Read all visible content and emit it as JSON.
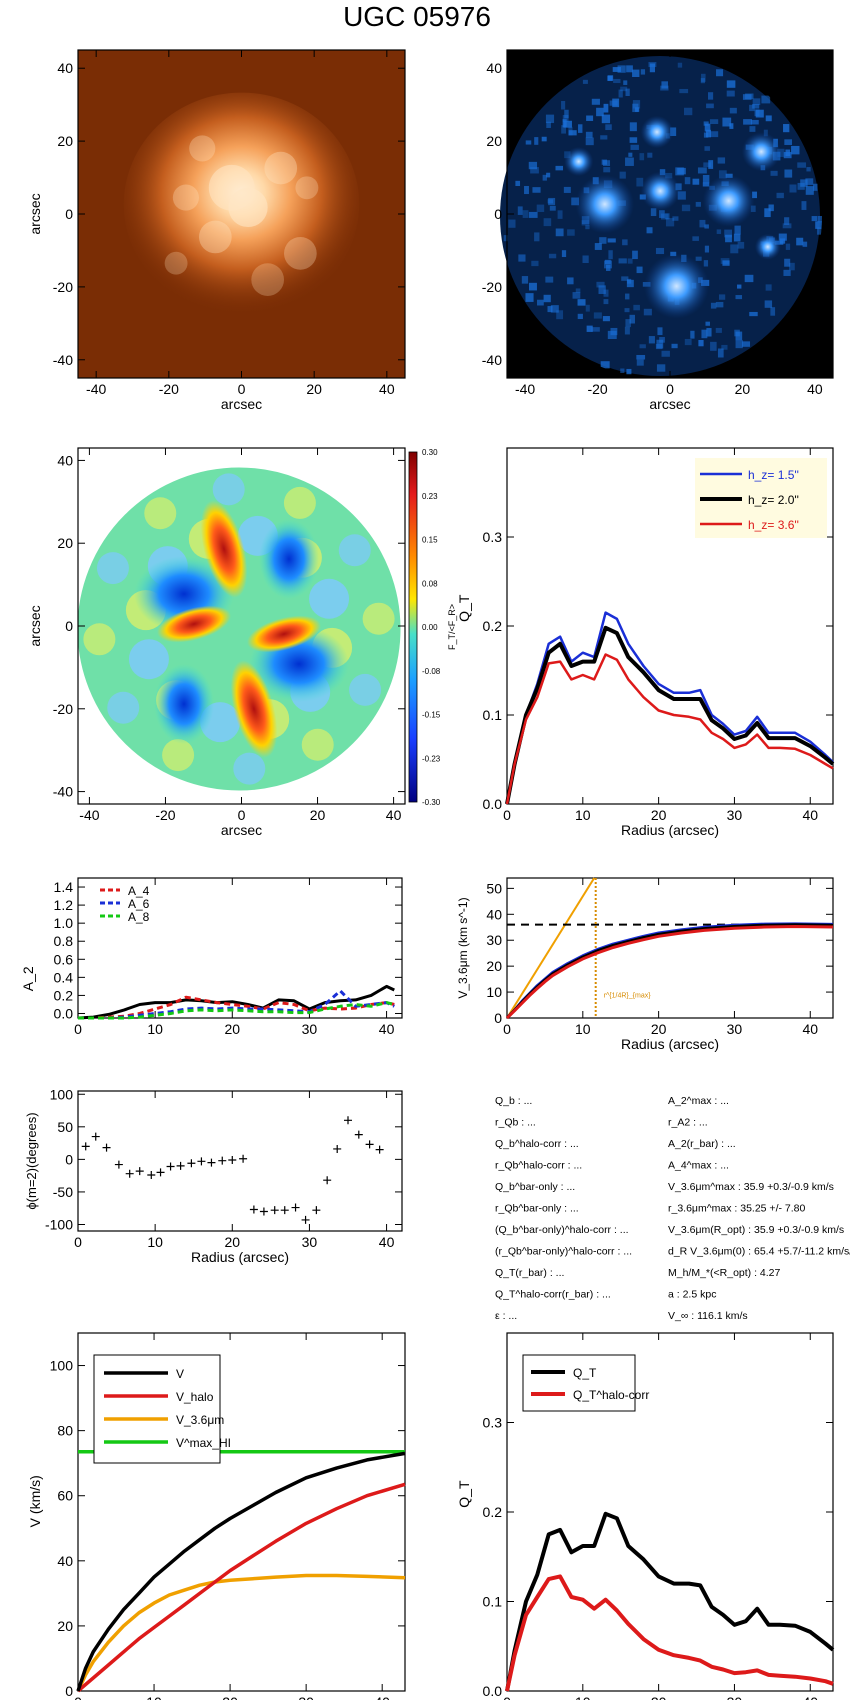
{
  "title": "UGC 05976",
  "colors": {
    "black": "#000000",
    "red": "#dd1a1a",
    "blue": "#1a2fd6",
    "green": "#14c814",
    "orange": "#f0a000",
    "dash_orange": "#d78b00",
    "legend_bg": "#fffbe0",
    "galaxy_bg": "#7a2d05",
    "galaxy_core": "#fff0d8",
    "residual_bg": "#000000",
    "residual_blue": "#1f86ff"
  },
  "chart_data": [
    {
      "id": "image-3.6um",
      "type": "heatmap",
      "xlabel": "arcsec",
      "ylabel": "arcsec",
      "xlim": [
        -45,
        45
      ],
      "ylim": [
        -45,
        45
      ],
      "xticks": [
        "-40",
        "-20",
        "0",
        "20",
        "40"
      ],
      "yticks": [
        "-40",
        "-20",
        "0",
        "20",
        "40"
      ],
      "colormap": "orange"
    },
    {
      "id": "residual-image",
      "type": "heatmap",
      "xlabel": "arcsec",
      "ylabel": "",
      "xlim": [
        -45,
        45
      ],
      "ylim": [
        -45,
        45
      ],
      "xticks": [
        "-40",
        "-20",
        "0",
        "20",
        "40"
      ],
      "yticks": [
        "-40",
        "-20",
        "0",
        "20",
        "40"
      ],
      "colormap": "blue"
    },
    {
      "id": "force-ratio-map",
      "type": "heatmap",
      "xlabel": "arcsec",
      "ylabel": "arcsec",
      "xlim": [
        -43,
        43
      ],
      "ylim": [
        -43,
        43
      ],
      "xticks": [
        "-40",
        "-20",
        "0",
        "20",
        "40"
      ],
      "yticks": [
        "-40",
        "-20",
        "0",
        "20",
        "40"
      ],
      "colorbar": {
        "label": "F_T/<F_R>",
        "ticks": [
          "0.30",
          "0.23",
          "0.15",
          "0.08",
          "0.00",
          "-0.08",
          "-0.15",
          "-0.23",
          "-0.30"
        ],
        "range": [
          -0.3,
          0.3
        ]
      }
    },
    {
      "id": "qt-profile",
      "type": "line",
      "xlabel": "Radius (arcsec)",
      "ylabel": "Q_T",
      "xlim": [
        0,
        43
      ],
      "ylim": [
        0,
        0.4
      ],
      "xticks": [
        "0",
        "10",
        "20",
        "30",
        "40"
      ],
      "yticks": [
        "0.0",
        "0.1",
        "0.2",
        "0.3"
      ],
      "x": [
        0,
        1,
        2.5,
        4,
        5.5,
        7,
        8.5,
        10,
        11.5,
        13,
        14.5,
        16,
        18,
        20,
        22,
        24,
        25.5,
        27,
        28.5,
        30,
        31.5,
        33,
        34.5,
        36,
        38,
        40,
        42,
        43
      ],
      "series": [
        {
          "name": "h_z=  1.5''",
          "color": "blue",
          "values": [
            0,
            0.045,
            0.1,
            0.135,
            0.18,
            0.188,
            0.16,
            0.17,
            0.165,
            0.215,
            0.208,
            0.18,
            0.155,
            0.135,
            0.125,
            0.125,
            0.128,
            0.1,
            0.09,
            0.078,
            0.082,
            0.098,
            0.08,
            0.08,
            0.08,
            0.07,
            0.055,
            0.047
          ]
        },
        {
          "name": "h_z=  2.0''",
          "color": "black",
          "values": [
            0,
            0.045,
            0.1,
            0.13,
            0.17,
            0.18,
            0.155,
            0.16,
            0.16,
            0.198,
            0.192,
            0.165,
            0.148,
            0.128,
            0.118,
            0.118,
            0.118,
            0.094,
            0.085,
            0.073,
            0.077,
            0.091,
            0.074,
            0.074,
            0.074,
            0.065,
            0.052,
            0.045
          ]
        },
        {
          "name": "h_z=  3.6''",
          "color": "red",
          "values": [
            0,
            0.045,
            0.095,
            0.12,
            0.158,
            0.16,
            0.14,
            0.145,
            0.14,
            0.168,
            0.162,
            0.14,
            0.12,
            0.105,
            0.1,
            0.098,
            0.095,
            0.08,
            0.073,
            0.063,
            0.067,
            0.078,
            0.063,
            0.063,
            0.062,
            0.055,
            0.045,
            0.04
          ]
        }
      ],
      "legend": "top-right"
    },
    {
      "id": "fourier-amplitudes",
      "type": "line",
      "xlabel": "",
      "ylabel": "A_2",
      "xlim": [
        0,
        42
      ],
      "ylim": [
        -0.05,
        1.5
      ],
      "xticks": [
        "0",
        "10",
        "20",
        "30",
        "40"
      ],
      "yticks": [
        "0.0",
        "0.2",
        "0.4",
        "0.6",
        "0.8",
        "1.0",
        "1.2",
        "1.4"
      ],
      "x": [
        0,
        2,
        4,
        6,
        8,
        10,
        12,
        14,
        16,
        18,
        20,
        22,
        24,
        26,
        28,
        30,
        32,
        34,
        36,
        38,
        40,
        41
      ],
      "series": [
        {
          "name": "A_2",
          "color": "black",
          "dash": false,
          "values": [
            -0.05,
            -0.04,
            -0.01,
            0.04,
            0.1,
            0.12,
            0.12,
            0.15,
            0.14,
            0.12,
            0.13,
            0.1,
            0.06,
            0.15,
            0.14,
            0.05,
            0.12,
            0.14,
            0.15,
            0.2,
            0.3,
            0.26
          ]
        },
        {
          "name": "A_4",
          "color": "red",
          "dash": true,
          "values": [
            -0.05,
            -0.05,
            -0.04,
            -0.03,
            0.0,
            0.05,
            0.1,
            0.18,
            0.15,
            0.12,
            0.1,
            0.08,
            0.05,
            0.12,
            0.1,
            0.03,
            0.06,
            0.05,
            0.06,
            0.1,
            0.12,
            0.1
          ]
        },
        {
          "name": "A_6",
          "color": "blue",
          "dash": true,
          "values": [
            -0.05,
            -0.05,
            -0.05,
            -0.04,
            -0.02,
            0.0,
            0.02,
            0.05,
            0.06,
            0.05,
            0.06,
            0.05,
            0.05,
            0.04,
            0.03,
            0.02,
            0.1,
            0.25,
            0.08,
            0.1,
            0.12,
            0.08
          ]
        },
        {
          "name": "A_8",
          "color": "green",
          "dash": true,
          "values": [
            -0.05,
            -0.05,
            -0.05,
            -0.05,
            -0.04,
            -0.02,
            0.0,
            0.03,
            0.04,
            0.03,
            0.04,
            0.03,
            0.02,
            0.02,
            0.01,
            0.01,
            0.05,
            0.08,
            0.1,
            0.08,
            0.12,
            0.1
          ]
        }
      ],
      "legend": "top-left"
    },
    {
      "id": "stellar-velocity",
      "type": "line",
      "xlabel": "Radius (arcsec)",
      "ylabel": "V_3.6μm (km s^-1)",
      "xlim": [
        0,
        43
      ],
      "ylim": [
        0,
        54
      ],
      "xticks": [
        "0",
        "10",
        "20",
        "30",
        "40"
      ],
      "yticks": [
        "0",
        "10",
        "20",
        "30",
        "40",
        "50"
      ],
      "x": [
        0,
        1,
        2,
        3,
        4,
        5,
        6,
        8,
        10,
        12,
        14,
        16,
        18,
        20,
        23,
        26,
        30,
        34,
        38,
        43
      ],
      "series": [
        {
          "name": "blue",
          "color": "blue",
          "values": [
            0,
            3,
            6.5,
            9.5,
            12.5,
            15,
            17.5,
            21,
            24,
            26.5,
            28.5,
            30,
            31.5,
            32.8,
            34,
            35,
            35.8,
            36.2,
            36.3,
            36.1
          ]
        },
        {
          "name": "black",
          "color": "black",
          "values": [
            0,
            3,
            6.2,
            9.2,
            12,
            14.6,
            17,
            20.5,
            23.5,
            26,
            28,
            29.5,
            31,
            32.3,
            33.5,
            34.5,
            35.3,
            35.8,
            36,
            35.8
          ]
        },
        {
          "name": "red",
          "color": "red",
          "values": [
            0,
            2.8,
            5.8,
            8.7,
            11.4,
            14,
            16.3,
            19.8,
            22.8,
            25.2,
            27.2,
            28.8,
            30.2,
            31.5,
            32.8,
            33.8,
            34.6,
            35.1,
            35.3,
            35.1
          ]
        }
      ],
      "vmax": 36.0,
      "inner_slope_line": {
        "x": [
          0,
          11.5
        ],
        "y": [
          0,
          54
        ]
      },
      "r_marker": {
        "x": 11.7,
        "label": "r^{1/4R}_{max}"
      }
    },
    {
      "id": "phase-angle",
      "type": "scatter",
      "xlabel": "Radius (arcsec)",
      "ylabel": "ϕ(m=2)(degrees)",
      "xlim": [
        0,
        42
      ],
      "ylim": [
        -110,
        105
      ],
      "xticks": [
        "0",
        "10",
        "20",
        "30",
        "40"
      ],
      "yticks": [
        "100",
        "50",
        "0",
        "-50",
        "-100"
      ],
      "points": [
        [
          1,
          20
        ],
        [
          2.3,
          35
        ],
        [
          3.7,
          18
        ],
        [
          5.3,
          -8
        ],
        [
          6.7,
          -22
        ],
        [
          8,
          -18
        ],
        [
          9.5,
          -24
        ],
        [
          10.7,
          -20
        ],
        [
          12,
          -11
        ],
        [
          13.3,
          -10
        ],
        [
          14.7,
          -6
        ],
        [
          16,
          -3
        ],
        [
          17.3,
          -5
        ],
        [
          18.7,
          -2
        ],
        [
          20,
          -1
        ],
        [
          21.4,
          1
        ],
        [
          22.8,
          -77
        ],
        [
          24.1,
          -80
        ],
        [
          25.5,
          -78
        ],
        [
          26.8,
          -78
        ],
        [
          28.2,
          -74
        ],
        [
          29.5,
          -93
        ],
        [
          30.9,
          -78
        ],
        [
          32.3,
          -32
        ],
        [
          33.6,
          16
        ],
        [
          35,
          60
        ],
        [
          36.4,
          38
        ],
        [
          37.8,
          23
        ],
        [
          39.1,
          15
        ]
      ]
    },
    {
      "id": "rotation-curve",
      "type": "line",
      "xlabel": "Radius (arcsec)",
      "ylabel": "V (km/s)",
      "xlim": [
        0,
        43
      ],
      "ylim": [
        0,
        110
      ],
      "xticks": [
        "0",
        "10",
        "20",
        "30",
        "40"
      ],
      "yticks": [
        "0",
        "20",
        "40",
        "60",
        "80",
        "100"
      ],
      "x": [
        0,
        1,
        2,
        4,
        6,
        8,
        10,
        12,
        14,
        16,
        18,
        20,
        23,
        26,
        30,
        34,
        38,
        43
      ],
      "series": [
        {
          "name": "V",
          "color": "black",
          "values": [
            0,
            7,
            12,
            19,
            25,
            30,
            35,
            39,
            43,
            46.5,
            50,
            53,
            57,
            61,
            65.5,
            68.5,
            71,
            73
          ]
        },
        {
          "name": "V_halo",
          "color": "red",
          "values": [
            0,
            2,
            4,
            8,
            12,
            16,
            19.5,
            23,
            26.5,
            30,
            33.5,
            37,
            41.5,
            46,
            51.5,
            56,
            60,
            63.5
          ]
        },
        {
          "name": "V_3.6μm",
          "color": "orange",
          "values": [
            0,
            5,
            9,
            15,
            20,
            24,
            27,
            29.5,
            31,
            32.5,
            33.5,
            34,
            34.5,
            35,
            35.5,
            35.5,
            35.2,
            34.8
          ]
        },
        {
          "name": "V^max_HI",
          "color": "green",
          "values": [
            73.5,
            73.5,
            73.5,
            73.5,
            73.5,
            73.5,
            73.5,
            73.5,
            73.5,
            73.5,
            73.5,
            73.5,
            73.5,
            73.5,
            73.5,
            73.5,
            73.5,
            73.5
          ]
        }
      ],
      "legend": "top-left"
    },
    {
      "id": "qt-halo-corrected",
      "type": "line",
      "xlabel": "Radius (arcsec)",
      "ylabel": "Q_T",
      "xlim": [
        0,
        43
      ],
      "ylim": [
        0,
        0.4
      ],
      "xticks": [
        "0",
        "10",
        "20",
        "30",
        "40"
      ],
      "yticks": [
        "0.0",
        "0.1",
        "0.2",
        "0.3"
      ],
      "x": [
        0,
        1,
        2.5,
        4,
        5.5,
        7,
        8.5,
        10,
        11.5,
        13,
        14.5,
        16,
        18,
        20,
        22,
        24,
        25.5,
        27,
        28.5,
        30,
        31.5,
        33,
        34.5,
        36,
        38,
        40,
        42,
        43
      ],
      "series": [
        {
          "name": "Q_T",
          "color": "black",
          "values": [
            0,
            0.045,
            0.1,
            0.13,
            0.175,
            0.18,
            0.155,
            0.162,
            0.162,
            0.198,
            0.193,
            0.162,
            0.147,
            0.128,
            0.12,
            0.12,
            0.118,
            0.094,
            0.085,
            0.074,
            0.078,
            0.092,
            0.074,
            0.074,
            0.073,
            0.066,
            0.053,
            0.046
          ]
        },
        {
          "name": "Q_T^halo-corr",
          "color": "red",
          "values": [
            0,
            0.04,
            0.085,
            0.105,
            0.125,
            0.128,
            0.105,
            0.102,
            0.092,
            0.102,
            0.09,
            0.075,
            0.058,
            0.046,
            0.04,
            0.037,
            0.034,
            0.027,
            0.024,
            0.02,
            0.021,
            0.023,
            0.018,
            0.017,
            0.016,
            0.014,
            0.011,
            0.008
          ]
        }
      ],
      "legend": "top-left"
    }
  ],
  "params": {
    "left": [
      "Q_b : ...",
      "r_Qb : ...",
      "Q_b^halo-corr : ...",
      "r_Qb^halo-corr : ...",
      "Q_b^bar-only : ...",
      "r_Qb^bar-only : ...",
      "(Q_b^bar-only)^halo-corr : ...",
      "(r_Qb^bar-only)^halo-corr : ...",
      "Q_T(r_bar) : ...",
      "Q_T^halo-corr(r_bar) : ...",
      "ε : ..."
    ],
    "right": [
      "A_2^max : ...",
      "r_A2 : ...",
      "A_2(r_bar) : ...",
      "A_4^max : ...",
      "V_3.6μm^max :  35.9 +0.3/-0.9 km/s",
      "r_3.6μm^max :  35.25 +/- 7.80",
      "V_3.6μm(R_opt) :  35.9 +0.3/-0.9 km/s",
      "d_R V_3.6μm(0) :  65.4 +5.7/-11.2 km/s/kpc",
      "M_h/M_*(<R_opt) :  4.27",
      "a :   2.5 kpc",
      "V_∞ :  116.1 km/s"
    ]
  }
}
